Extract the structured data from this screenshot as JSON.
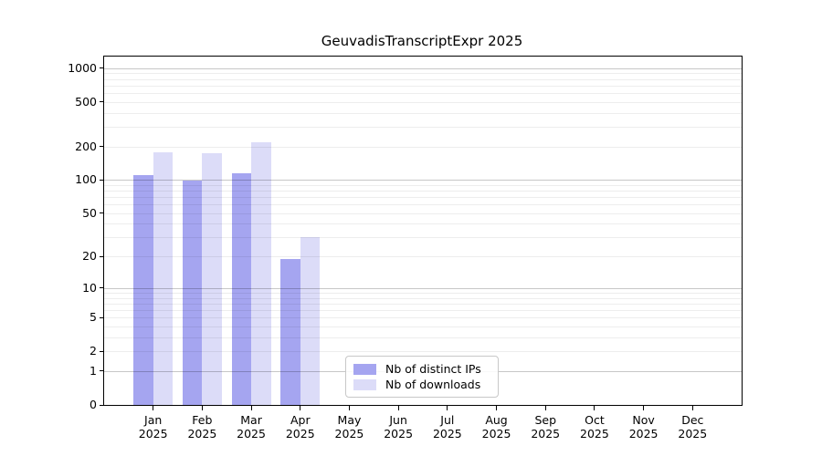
{
  "figure": {
    "title": "GeuvadisTranscriptExpr 2025"
  },
  "legend": {
    "items": [
      {
        "label": "Nb of distinct IPs",
        "swatch_color": "#a5a5f0"
      },
      {
        "label": "Nb of downloads",
        "swatch_color": "#dcdcf8"
      }
    ]
  },
  "chart_data": {
    "type": "bar",
    "title": "GeuvadisTranscriptExpr 2025",
    "y_scale": "log1p",
    "ylim": [
      0,
      1268
    ],
    "y_ticks": [
      0,
      1,
      2,
      5,
      10,
      20,
      50,
      100,
      200,
      500,
      1000
    ],
    "major_grid_values": [
      1,
      10,
      100,
      1000
    ],
    "grid": true,
    "legend_position": "lower center",
    "x_tick_months": [
      "Jan",
      "Feb",
      "Mar",
      "Apr",
      "May",
      "Jun",
      "Jul",
      "Aug",
      "Sep",
      "Oct",
      "Nov",
      "Dec"
    ],
    "x_tick_year": "2025",
    "categories": [
      "Jan 2025",
      "Feb 2025",
      "Mar 2025",
      "Apr 2025",
      "May 2025",
      "Jun 2025",
      "Jul 2025",
      "Aug 2025",
      "Sep 2025",
      "Oct 2025",
      "Nov 2025",
      "Dec 2025"
    ],
    "series": [
      {
        "name": "Nb of distinct IPs",
        "color": "#a5a5f0",
        "values": [
          111,
          99,
          114,
          19,
          0,
          0,
          0,
          0,
          0,
          0,
          0,
          0
        ]
      },
      {
        "name": "Nb of downloads",
        "color": "#dcdcf8",
        "values": [
          178,
          173,
          219,
          30,
          0,
          0,
          0,
          0,
          0,
          0,
          0,
          0
        ]
      }
    ],
    "colors": {
      "major_grid": "rgba(0,0,0,0.22)",
      "minor_grid": "rgba(0,0,0,0.07)",
      "axis": "#000000"
    }
  }
}
